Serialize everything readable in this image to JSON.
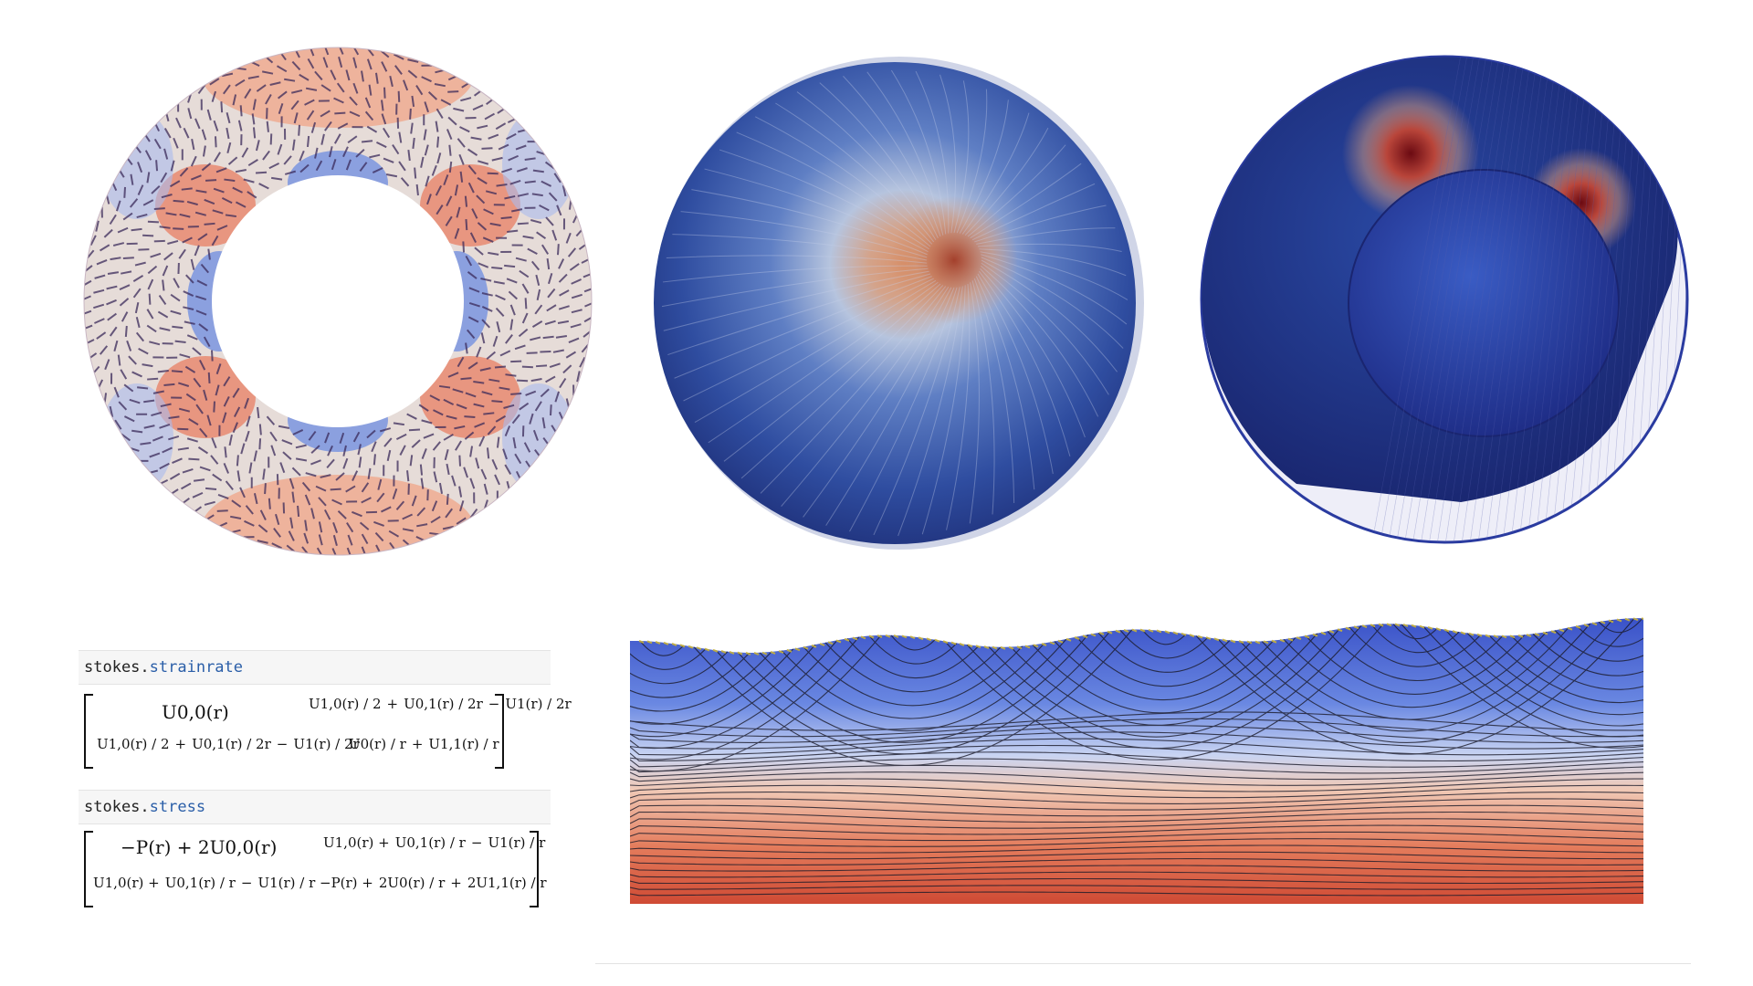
{
  "colors": {
    "cold": "#2b3a8f",
    "mid": "#dfe4ee",
    "hot": "#c0392b",
    "deep_hot": "#7a0c10"
  },
  "code_cells": {
    "strainrate": {
      "object": "stokes.",
      "attribute": "strainrate"
    },
    "stress": {
      "object": "stokes.",
      "attribute": "stress"
    }
  },
  "strainrate_matrix": {
    "a11": "U0,0(r)",
    "a12": [
      "U1,0(r) / 2",
      "+",
      "U0,1(r) / 2r",
      "−",
      "U1(r) / 2r"
    ],
    "a21": [
      "U1,0(r) / 2",
      "+",
      "U0,1(r) / 2r",
      "−",
      "U1(r) / 2r"
    ],
    "a22": [
      "U0(r) / r",
      "+",
      "U1,1(r) / r"
    ]
  },
  "stress_matrix": {
    "a11": "−P(r) + 2U0,0(r)",
    "a12": [
      "U1,0(r) +",
      "U0,1(r) / r",
      "−",
      "U1(r) / r"
    ],
    "a21": [
      "U1,0(r) +",
      "U0,1(r) / r",
      "−",
      "U1(r) / r"
    ],
    "a22": [
      "−P(r) +",
      "2U0(r) / r",
      "+",
      "2U1,1(r) / r"
    ]
  }
}
